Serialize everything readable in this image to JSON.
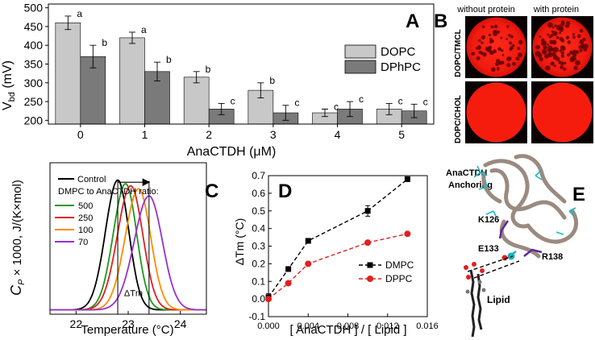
{
  "chart_data": [
    {
      "panel": "A",
      "type": "bar",
      "xlabel": "AnaCTDH (μM)",
      "xlabel_main": "AnaCTDH (",
      "xlabel_unit": "μM",
      "xlabel_close": ")",
      "ylabel_main": "V",
      "ylabel_sub": "bd",
      "ylabel_unit": " (mV)",
      "ylim": [
        190,
        510
      ],
      "yticks": [
        200,
        250,
        300,
        350,
        400,
        450,
        500
      ],
      "categories": [
        "0",
        "1",
        "2",
        "3",
        "4",
        "5"
      ],
      "series": [
        {
          "name": "DOPC",
          "color": "#c8c8c8",
          "values": [
            460,
            420,
            315,
            280,
            220,
            230
          ],
          "errors": [
            18,
            15,
            15,
            20,
            10,
            15
          ],
          "letters": [
            "a",
            "a",
            "b",
            "b",
            "c",
            "c"
          ]
        },
        {
          "name": "DPhPC",
          "color": "#7a7a7a",
          "values": [
            370,
            330,
            230,
            220,
            230,
            225
          ],
          "errors": [
            30,
            25,
            15,
            20,
            20,
            18
          ],
          "letters": [
            "b",
            "b",
            "c",
            "c",
            "c",
            "c"
          ]
        }
      ],
      "legend": "top-right",
      "grid": false
    },
    {
      "panel": "C",
      "type": "line",
      "xlabel": "Temperature (°C)",
      "ylabel_main": "C",
      "ylabel_sub": "P",
      "ylabel_rest": " × 1000, J/(K×mol)",
      "xlim": [
        21.5,
        24.5
      ],
      "xticks": [
        22,
        23,
        24
      ],
      "ylim": [
        0,
        21
      ],
      "legend_title": "DMPC to AnaCTDH ratio:",
      "series": [
        {
          "name": "Control",
          "color": "#000000",
          "peak": 22.8,
          "height": 18,
          "width": 0.35
        },
        {
          "name": "500",
          "color": "#1a9a1a",
          "peak": 22.95,
          "height": 17.5,
          "width": 0.35
        },
        {
          "name": "250",
          "color": "#e02020",
          "peak": 23.05,
          "height": 17.2,
          "width": 0.38
        },
        {
          "name": "100",
          "color": "#ff8c00",
          "peak": 23.2,
          "height": 16.8,
          "width": 0.38
        },
        {
          "name": "70",
          "color": "#9a30d0",
          "peak": 23.4,
          "height": 15.8,
          "width": 0.42
        }
      ],
      "annotation": "ΔTm"
    },
    {
      "panel": "D",
      "type": "scatter",
      "xlabel": "[ AnaCTDH ] / [ Lipid ]",
      "ylabel": "ΔTm (°C)",
      "xlim": [
        0,
        0.016
      ],
      "xticks": [
        0.0,
        0.004,
        0.008,
        0.012,
        0.016
      ],
      "xtick_labels": [
        "0.000",
        "0.004",
        "0.008",
        "0.012",
        "0.016"
      ],
      "ylim": [
        -0.1,
        0.7
      ],
      "yticks": [
        -0.1,
        0.0,
        0.1,
        0.2,
        0.3,
        0.4,
        0.5,
        0.6,
        0.7
      ],
      "ytick_labels": [
        "-0.1",
        "0.0",
        "0.1",
        "0.2",
        "0.3",
        "0.4",
        "0.5",
        "0.6",
        "0.7"
      ],
      "series": [
        {
          "name": "DMPC",
          "color": "#000000",
          "marker": "square",
          "x": [
            0.0,
            0.002,
            0.004,
            0.01,
            0.014
          ],
          "y": [
            0.01,
            0.17,
            0.33,
            0.5,
            0.68
          ],
          "err": [
            0.02,
            0.0,
            0.0,
            0.03,
            0.0
          ]
        },
        {
          "name": "DPPC",
          "color": "#e02020",
          "marker": "circle",
          "x": [
            0.0,
            0.002,
            0.004,
            0.01,
            0.014
          ],
          "y": [
            0.0,
            0.09,
            0.2,
            0.32,
            0.37
          ],
          "err": [
            0.0,
            0.0,
            0.0,
            0.0,
            0.0
          ]
        }
      ],
      "legend": "bottom-right"
    }
  ],
  "panels": {
    "a": "A",
    "b": "B",
    "c": "C",
    "d": "D",
    "e": "E"
  },
  "micrographs": {
    "col1": "without protein",
    "col2": "with protein",
    "row1": "DOPC/TMCL",
    "row2": "DOPC/CHOL"
  },
  "structure": {
    "title_line1": "AnaCTDH",
    "title_line2": "Anchoring",
    "res1": "K126",
    "res2": "E133",
    "res3": "R138",
    "lipid": "Lipid"
  }
}
